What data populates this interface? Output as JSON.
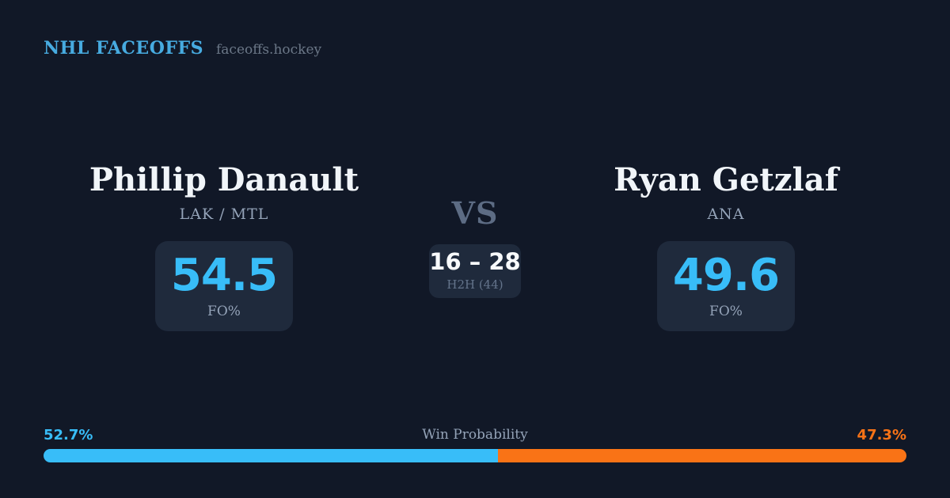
{
  "header": {
    "brand": "NHL FACEOFFS",
    "site": "faceoffs.hockey"
  },
  "player_left": {
    "name": "Phillip Danault",
    "teams": "LAK / MTL",
    "fo_value": "54.5",
    "fo_label": "FO%"
  },
  "matchup": {
    "vs_label": "VS",
    "h2h_score": "16 – 28",
    "h2h_label": "H2H (44)"
  },
  "player_right": {
    "name": "Ryan Getzlaf",
    "teams": "ANA",
    "fo_value": "49.6",
    "fo_label": "FO%"
  },
  "win_probability": {
    "label": "Win Probability",
    "left_pct_text": "52.7%",
    "right_pct_text": "47.3%",
    "left_value": 52.7,
    "right_value": 47.3,
    "left_color": "#38BDF8",
    "right_color": "#F97316"
  },
  "colors": {
    "background": "#111827",
    "card": "#1F2A3C",
    "accent_blue": "#38BDF8",
    "accent_orange": "#F97316",
    "brand_blue": "#47ABE0",
    "muted_text": "#94A3B8"
  },
  "chart_data": {
    "type": "bar",
    "title": "Win Probability",
    "categories": [
      "Phillip Danault",
      "Ryan Getzlaf"
    ],
    "series": [
      {
        "name": "Win Probability (%)",
        "values": [
          52.7,
          47.3
        ]
      },
      {
        "name": "Faceoff Win % (FO%)",
        "values": [
          54.5,
          49.6
        ]
      }
    ],
    "annotations": [
      "H2H (44): 16 – 28"
    ],
    "xlim": [
      0,
      100
    ],
    "legend_position": "none",
    "colors": [
      "#38BDF8",
      "#F97316"
    ]
  }
}
